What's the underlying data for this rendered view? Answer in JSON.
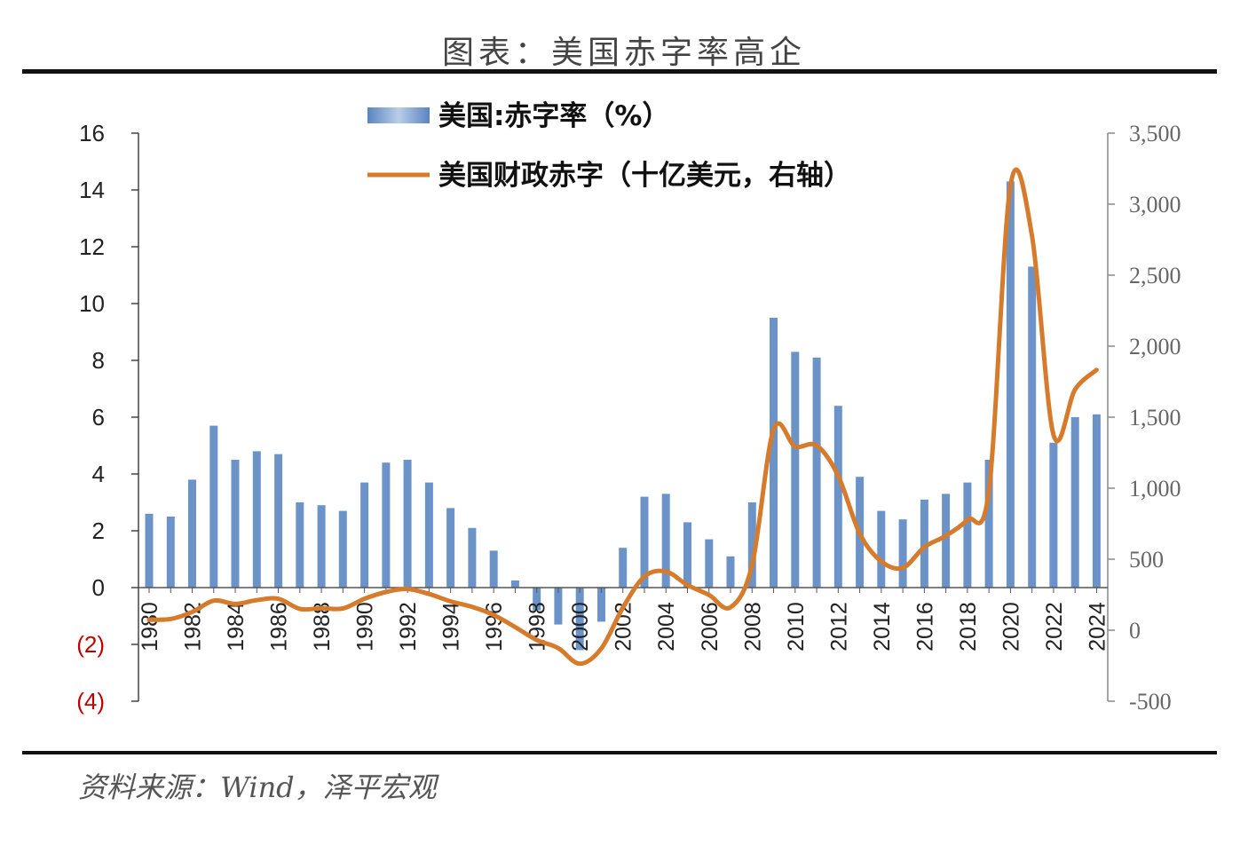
{
  "title": "图表：美国赤字率高企",
  "source": "资料来源：Wind，泽平宏观",
  "colors": {
    "bar": "#6b93c8",
    "line": "#d67a2c",
    "neg_tick": "#c00000"
  },
  "chart_data": {
    "type": "bar+line",
    "x": [
      1980,
      1981,
      1982,
      1983,
      1984,
      1985,
      1986,
      1987,
      1988,
      1989,
      1990,
      1991,
      1992,
      1993,
      1994,
      1995,
      1996,
      1997,
      1998,
      1999,
      2000,
      2001,
      2002,
      2003,
      2004,
      2005,
      2006,
      2007,
      2008,
      2009,
      2010,
      2011,
      2012,
      2013,
      2014,
      2015,
      2016,
      2017,
      2018,
      2019,
      2020,
      2021,
      2022,
      2023,
      2024
    ],
    "x_tick_labels": [
      "1980",
      "1982",
      "1984",
      "1986",
      "1988",
      "1990",
      "1992",
      "1994",
      "1996",
      "1998",
      "2000",
      "2002",
      "2004",
      "2006",
      "2008",
      "2010",
      "2012",
      "2014",
      "2016",
      "2018",
      "2020",
      "2022",
      "2024"
    ],
    "series": [
      {
        "name": "美国:赤字率（%）",
        "type": "bar",
        "axis": "left",
        "values": [
          2.6,
          2.5,
          3.8,
          5.7,
          4.5,
          4.8,
          4.7,
          3.0,
          2.9,
          2.7,
          3.7,
          4.4,
          4.5,
          3.7,
          2.8,
          2.1,
          1.3,
          0.25,
          -0.8,
          -1.3,
          -2.2,
          -1.2,
          1.4,
          3.2,
          3.3,
          2.3,
          1.7,
          1.1,
          3.0,
          9.5,
          8.3,
          8.1,
          6.4,
          3.9,
          2.7,
          2.4,
          3.1,
          3.3,
          3.7,
          4.5,
          14.3,
          11.3,
          5.1,
          6.0,
          6.1
        ]
      },
      {
        "name": "美国财政赤字（十亿美元，右轴）",
        "type": "line",
        "axis": "right",
        "values": [
          74,
          79,
          128,
          208,
          185,
          212,
          221,
          150,
          155,
          153,
          221,
          269,
          290,
          255,
          203,
          164,
          107,
          22,
          -69,
          -126,
          -236,
          -128,
          158,
          378,
          413,
          318,
          248,
          161,
          459,
          1413,
          1294,
          1300,
          1087,
          680,
          485,
          439,
          585,
          665,
          779,
          984,
          3132,
          2775,
          1375,
          1695,
          1833
        ]
      }
    ],
    "y_left": {
      "ticks": [
        16,
        14,
        12,
        10,
        8,
        6,
        4,
        2,
        0,
        -2,
        -4
      ],
      "tick_labels": [
        "16",
        "14",
        "12",
        "10",
        "8",
        "6",
        "4",
        "2",
        "0",
        "(2)",
        "(4)"
      ],
      "range": [
        -4,
        16
      ]
    },
    "y_right": {
      "ticks": [
        3500,
        3000,
        2500,
        2000,
        1500,
        1000,
        500,
        0,
        -500
      ],
      "tick_labels": [
        "3,500",
        "3,000",
        "2,500",
        "2,000",
        "1,500",
        "1,000",
        "500",
        "0",
        "-500"
      ],
      "range": [
        -500,
        3500
      ]
    },
    "legend": {
      "placement": "top-center",
      "entries": [
        "美国:赤字率（%）",
        "美国财政赤字（十亿美元，右轴）"
      ]
    },
    "grid": false
  }
}
